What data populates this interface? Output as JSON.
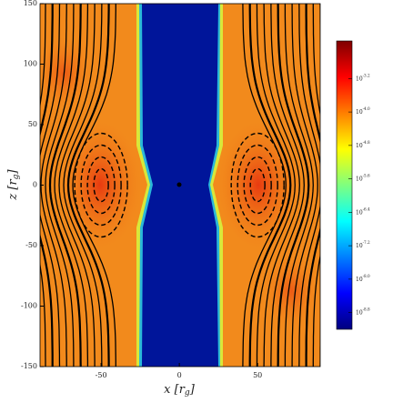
{
  "chart_data": {
    "type": "heatmap",
    "xlabel": "x [r_g]",
    "ylabel": "z [r_g]",
    "xlim": [
      -89,
      90
    ],
    "xticks": [
      -50,
      0,
      50
    ],
    "ylim": [
      -150,
      150
    ],
    "yticks": [
      -150,
      -100,
      -50,
      0,
      50,
      100,
      150
    ],
    "clim": [
      -9.2,
      -2.3
    ],
    "cticks": [
      {
        "value": -3.2,
        "label": "10^-3.2"
      },
      {
        "value": -4.0,
        "label": "10^-4.0"
      },
      {
        "value": -4.8,
        "label": "10^-4.8"
      },
      {
        "value": -5.6,
        "label": "10^-5.6"
      },
      {
        "value": -6.4,
        "label": "10^-6.4"
      },
      {
        "value": -7.2,
        "label": "10^-7.2"
      },
      {
        "value": -8.0,
        "label": "10^-8.0"
      },
      {
        "value": -8.8,
        "label": "10^-8.8"
      }
    ],
    "colormap": [
      "#7f0000",
      "#ff0000",
      "#ff7f00",
      "#ffff00",
      "#7fff7f",
      "#00ffff",
      "#007fff",
      "#0000ff",
      "#00007f"
    ]
  }
}
